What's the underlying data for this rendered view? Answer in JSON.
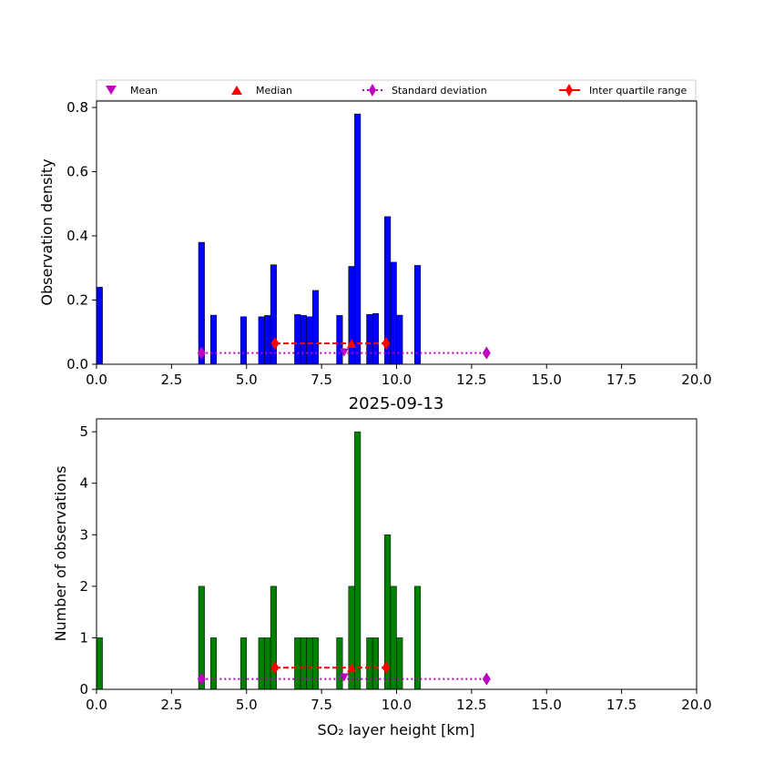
{
  "chart_data": [
    {
      "type": "bar",
      "panel": "top",
      "title": "",
      "xlabel": "",
      "ylabel": "Observation density",
      "xlim": [
        0,
        20
      ],
      "ylim": [
        0,
        0.82
      ],
      "xticks": [
        "0.0",
        "2.5",
        "5.0",
        "7.5",
        "10.0",
        "12.5",
        "15.0",
        "17.5",
        "20.0"
      ],
      "xtick_values": [
        0,
        2.5,
        5,
        7.5,
        10,
        12.5,
        15,
        17.5,
        20
      ],
      "yticks": [
        "0.0",
        "0.2",
        "0.4",
        "0.6",
        "0.8"
      ],
      "ytick_values": [
        0,
        0.2,
        0.4,
        0.6,
        0.8
      ],
      "bar_color": "#0000ff",
      "bar_width": 0.2,
      "bins": [
        {
          "x": 0.0,
          "value": 0.24
        },
        {
          "x": 3.4,
          "value": 0.38
        },
        {
          "x": 3.8,
          "value": 0.153
        },
        {
          "x": 4.8,
          "value": 0.148
        },
        {
          "x": 5.4,
          "value": 0.148
        },
        {
          "x": 5.6,
          "value": 0.152
        },
        {
          "x": 5.8,
          "value": 0.31
        },
        {
          "x": 6.6,
          "value": 0.155
        },
        {
          "x": 6.8,
          "value": 0.152
        },
        {
          "x": 7.0,
          "value": 0.148
        },
        {
          "x": 7.2,
          "value": 0.23
        },
        {
          "x": 8.0,
          "value": 0.152
        },
        {
          "x": 8.4,
          "value": 0.305
        },
        {
          "x": 8.6,
          "value": 0.78
        },
        {
          "x": 9.0,
          "value": 0.155
        },
        {
          "x": 9.2,
          "value": 0.158
        },
        {
          "x": 9.6,
          "value": 0.46
        },
        {
          "x": 9.8,
          "value": 0.318
        },
        {
          "x": 10.0,
          "value": 0.153
        },
        {
          "x": 10.6,
          "value": 0.308
        }
      ],
      "mean": {
        "x": 8.25,
        "y": 0.035
      },
      "median": {
        "x": 8.5,
        "y": 0.065
      },
      "std_range": {
        "x0": 3.5,
        "x1": 13.0,
        "y": 0.035
      },
      "iqr_range": {
        "x0": 5.95,
        "x1": 9.65,
        "y": 0.065
      }
    },
    {
      "type": "bar",
      "panel": "bottom",
      "title": "2025-09-13",
      "xlabel": "SO₂ layer height [km]",
      "ylabel": "Number of observations",
      "xlim": [
        0,
        20
      ],
      "ylim": [
        0,
        5.25
      ],
      "xticks": [
        "0.0",
        "2.5",
        "5.0",
        "7.5",
        "10.0",
        "12.5",
        "15.0",
        "17.5",
        "20.0"
      ],
      "xtick_values": [
        0,
        2.5,
        5,
        7.5,
        10,
        12.5,
        15,
        17.5,
        20
      ],
      "yticks": [
        "0",
        "1",
        "2",
        "3",
        "4",
        "5"
      ],
      "ytick_values": [
        0,
        1,
        2,
        3,
        4,
        5
      ],
      "bar_color": "#008000",
      "bar_width": 0.2,
      "bins": [
        {
          "x": 0.0,
          "value": 1
        },
        {
          "x": 3.4,
          "value": 2
        },
        {
          "x": 3.8,
          "value": 1
        },
        {
          "x": 4.8,
          "value": 1
        },
        {
          "x": 5.4,
          "value": 1
        },
        {
          "x": 5.6,
          "value": 1
        },
        {
          "x": 5.8,
          "value": 2
        },
        {
          "x": 6.6,
          "value": 1
        },
        {
          "x": 6.8,
          "value": 1
        },
        {
          "x": 7.0,
          "value": 1
        },
        {
          "x": 7.2,
          "value": 1
        },
        {
          "x": 8.0,
          "value": 1
        },
        {
          "x": 8.4,
          "value": 2
        },
        {
          "x": 8.6,
          "value": 5
        },
        {
          "x": 9.0,
          "value": 1
        },
        {
          "x": 9.2,
          "value": 1
        },
        {
          "x": 9.6,
          "value": 3
        },
        {
          "x": 9.8,
          "value": 2
        },
        {
          "x": 10.0,
          "value": 1
        },
        {
          "x": 10.6,
          "value": 2
        }
      ],
      "mean": {
        "x": 8.25,
        "y": 0.22
      },
      "median": {
        "x": 8.5,
        "y": 0.42
      },
      "std_range": {
        "x0": 3.5,
        "x1": 13.0,
        "y": 0.2
      },
      "iqr_range": {
        "x0": 5.95,
        "x1": 9.65,
        "y": 0.42
      }
    }
  ],
  "legend": {
    "placement": "top",
    "items": [
      {
        "label": "Mean",
        "marker": "triangle-down",
        "color": "#c000c0"
      },
      {
        "label": "Median",
        "marker": "triangle-up",
        "color": "#ff0000"
      },
      {
        "label": "Standard deviation",
        "marker": "diamond-dotted",
        "color": "#c000c0"
      },
      {
        "label": "Inter quartile range",
        "marker": "diamond-dashed",
        "color": "#ff0000"
      }
    ]
  },
  "colors": {
    "mean": "#c000c0",
    "median": "#ff0000",
    "std": "#c000c0",
    "iqr": "#ff0000"
  }
}
